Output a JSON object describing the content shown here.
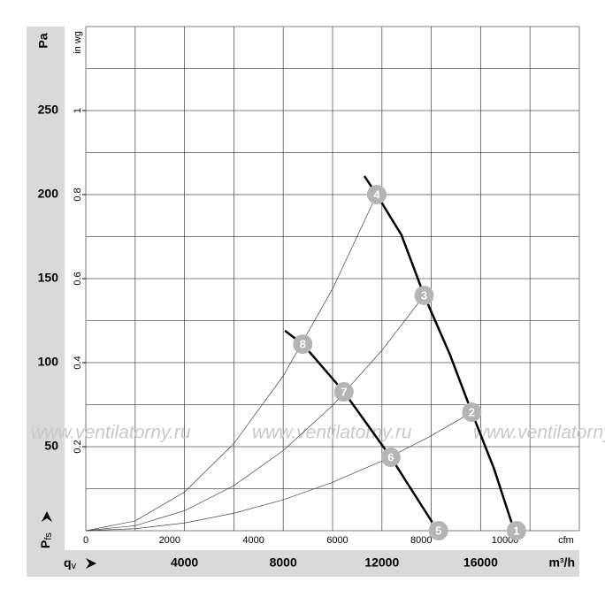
{
  "chart_data": {
    "type": "line",
    "ylabel": "Pa",
    "y2label": "in wg",
    "xunit": "m³/h",
    "x2unit": "cfm",
    "xlabel_symbol": "q",
    "xlabel_sub": "v",
    "ylabel_symbol": "P",
    "ylabel_sub": "fs",
    "watermark": "www.ventilatorny.ru",
    "xlim": [
      0,
      20000
    ],
    "xticks": [
      4000,
      8000,
      12000,
      16000
    ],
    "x2lim": [
      0,
      11770
    ],
    "x2ticks": [
      0,
      2000,
      4000,
      6000,
      8000,
      10000
    ],
    "ylim": [
      0,
      300
    ],
    "yticks": [
      50,
      100,
      150,
      200,
      250
    ],
    "y2lim": [
      0,
      1.2
    ],
    "y2ticks": [
      0.2,
      0.4,
      0.6,
      0.8,
      1
    ],
    "xgrid": [
      0,
      2000,
      4000,
      6000,
      8000,
      10000,
      12000,
      14000,
      16000,
      18000,
      20000
    ],
    "ygrid": [
      0,
      25,
      50,
      75,
      100,
      125,
      150,
      175,
      200,
      225,
      250,
      275,
      300
    ],
    "grid_color": "#555555",
    "series": [
      {
        "color": "#000000",
        "line_width": 2.5,
        "x": [
          11290,
          11790,
          12790,
          13710,
          14750,
          15640,
          16540,
          17250
        ],
        "y": [
          211,
          200,
          176,
          140,
          105,
          70.5,
          37,
          5
        ]
      },
      {
        "color": "#000000",
        "line_width": 2.5,
        "x": [
          8070,
          8790,
          10460,
          12360,
          14040
        ],
        "y": [
          119,
          111,
          82.6,
          43.7,
          5
        ]
      },
      {
        "color": "#444444",
        "line_width": 0.7,
        "x": [
          0,
          2000,
          4000,
          6000,
          8000,
          10000,
          11790
        ],
        "y": [
          0,
          5.8,
          23,
          51.8,
          92.1,
          143.9,
          200
        ]
      },
      {
        "color": "#444444",
        "line_width": 0.7,
        "x": [
          0,
          2000,
          4000,
          6000,
          8000,
          10000,
          12000,
          13710
        ],
        "y": [
          0,
          3.0,
          11.9,
          26.8,
          47.7,
          74.5,
          107.3,
          140
        ]
      },
      {
        "color": "#444444",
        "line_width": 0.7,
        "x": [
          0,
          2000,
          4000,
          6000,
          8000,
          10000,
          12000,
          14000,
          15640
        ],
        "y": [
          0,
          1.2,
          4.6,
          10.4,
          18.4,
          28.8,
          41.5,
          56.5,
          70.5
        ]
      }
    ],
    "point_color": "#b4b4b4",
    "points": [
      {
        "label": "1",
        "x": 17450,
        "y": 0
      },
      {
        "label": "2",
        "x": 15640,
        "y": 70.5
      },
      {
        "label": "3",
        "x": 13710,
        "y": 140
      },
      {
        "label": "4",
        "x": 11790,
        "y": 200
      },
      {
        "label": "5",
        "x": 14290,
        "y": 0
      },
      {
        "label": "6",
        "x": 12360,
        "y": 43.7
      },
      {
        "label": "7",
        "x": 10460,
        "y": 82.6
      },
      {
        "label": "8",
        "x": 8790,
        "y": 111
      }
    ]
  }
}
